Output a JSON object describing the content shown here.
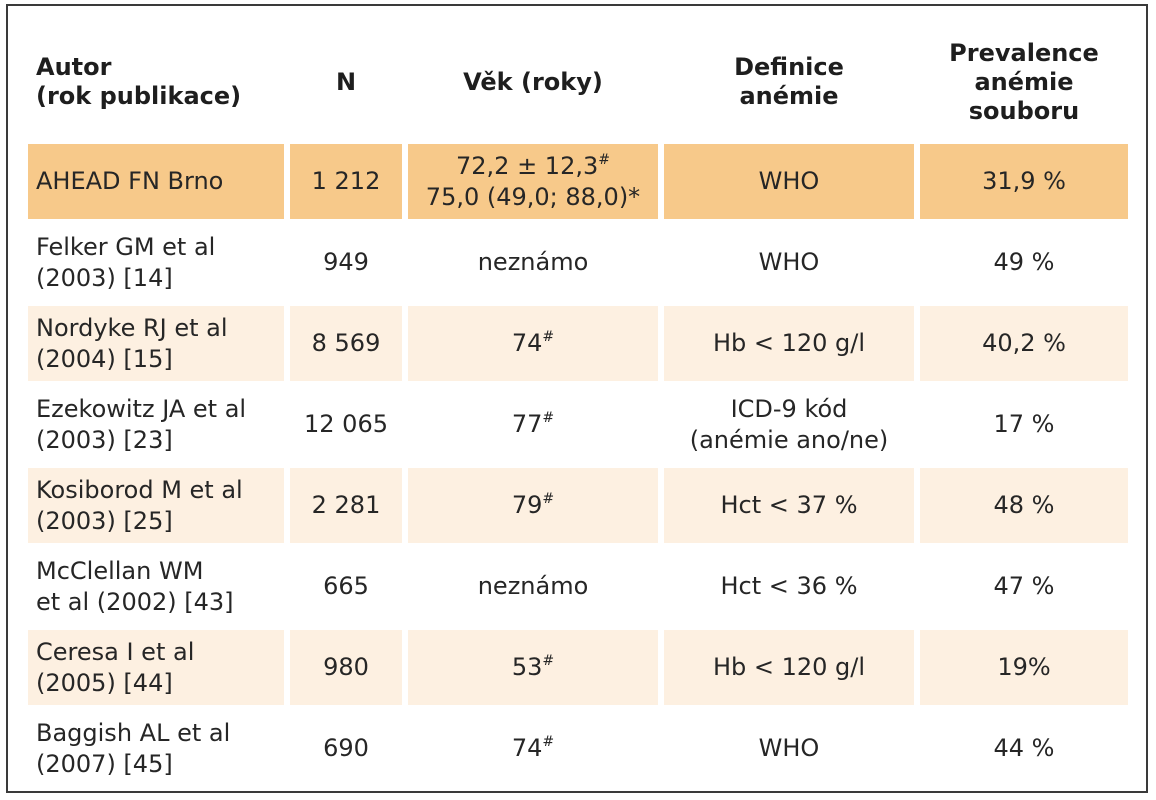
{
  "table": {
    "headers": [
      [
        "Autor",
        "(rok publikace)"
      ],
      [
        "N"
      ],
      [
        "Věk (roky)"
      ],
      [
        "Definice",
        "anémie"
      ],
      [
        "Prevalence",
        "anémie",
        "souboru"
      ]
    ],
    "rows": [
      {
        "autor": [
          "AHEAD FN Brno"
        ],
        "n": "1 212",
        "vek": [
          "72,2 ± 12,3",
          "75,0 (49,0; 88,0)*"
        ],
        "vek_sup": [
          "#",
          ""
        ],
        "definice": [
          "WHO"
        ],
        "prevalence": "31,9 %",
        "style": "highlight"
      },
      {
        "autor": [
          "Felker GM et al",
          "(2003) [14]"
        ],
        "n": "949",
        "vek": [
          "neznámo"
        ],
        "vek_sup": [
          ""
        ],
        "definice": [
          "WHO"
        ],
        "prevalence": "49 %",
        "style": "plain"
      },
      {
        "autor": [
          "Nordyke RJ et al",
          "(2004) [15]"
        ],
        "n": "8 569",
        "vek": [
          "74"
        ],
        "vek_sup": [
          "#"
        ],
        "definice": [
          "Hb < 120 g/l"
        ],
        "prevalence": "40,2 %",
        "style": "shaded"
      },
      {
        "autor": [
          "Ezekowitz JA et al",
          "(2003) [23]"
        ],
        "n": "12 065",
        "vek": [
          "77"
        ],
        "vek_sup": [
          "#"
        ],
        "definice": [
          "ICD-9 kód",
          "(anémie ano/ne)"
        ],
        "prevalence": "17 %",
        "style": "plain"
      },
      {
        "autor": [
          "Kosiborod M et al",
          "(2003) [25]"
        ],
        "n": "2 281",
        "vek": [
          "79"
        ],
        "vek_sup": [
          "#"
        ],
        "definice": [
          "Hct < 37 %"
        ],
        "prevalence": "48 %",
        "style": "shaded"
      },
      {
        "autor": [
          "McClellan WM",
          "et al (2002) [43]"
        ],
        "n": "665",
        "vek": [
          "neznámo"
        ],
        "vek_sup": [
          ""
        ],
        "definice": [
          "Hct < 36 %"
        ],
        "prevalence": "47 %",
        "style": "plain"
      },
      {
        "autor": [
          "Ceresa I et al",
          "(2005) [44]"
        ],
        "n": "980",
        "vek": [
          "53"
        ],
        "vek_sup": [
          "#"
        ],
        "definice": [
          "Hb < 120 g/l"
        ],
        "prevalence": "19%",
        "style": "shaded"
      },
      {
        "autor": [
          "Baggish AL et al",
          "(2007) [45]"
        ],
        "n": "690",
        "vek": [
          "74"
        ],
        "vek_sup": [
          "#"
        ],
        "definice": [
          "WHO"
        ],
        "prevalence": "44 %",
        "style": "plain"
      }
    ]
  }
}
